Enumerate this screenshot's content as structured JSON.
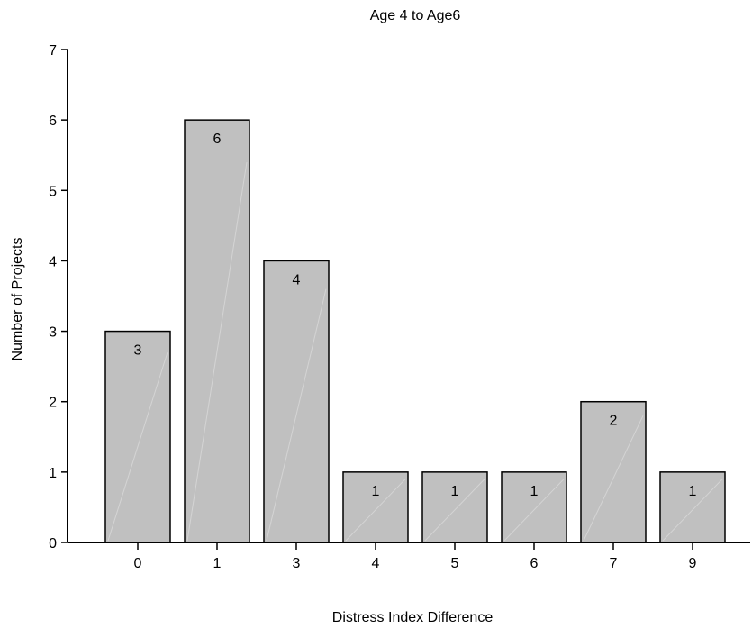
{
  "chart_data": {
    "type": "bar",
    "title": "Age 4 to Age6",
    "xlabel": "Distress Index Difference",
    "ylabel": "Number of Projects",
    "categories": [
      "0",
      "1",
      "3",
      "4",
      "5",
      "6",
      "7",
      "9"
    ],
    "values": [
      3,
      6,
      4,
      1,
      1,
      1,
      2,
      1
    ],
    "data_labels": [
      "3",
      "6",
      "4",
      "1",
      "1",
      "1",
      "2",
      "1"
    ],
    "ylim": [
      0,
      7
    ],
    "yticks": [
      "0",
      "1",
      "2",
      "3",
      "4",
      "5",
      "6",
      "7"
    ],
    "grid": false,
    "legend": "none",
    "bar_color": "#c0c0c0",
    "bar_edge_color": "#000000"
  }
}
